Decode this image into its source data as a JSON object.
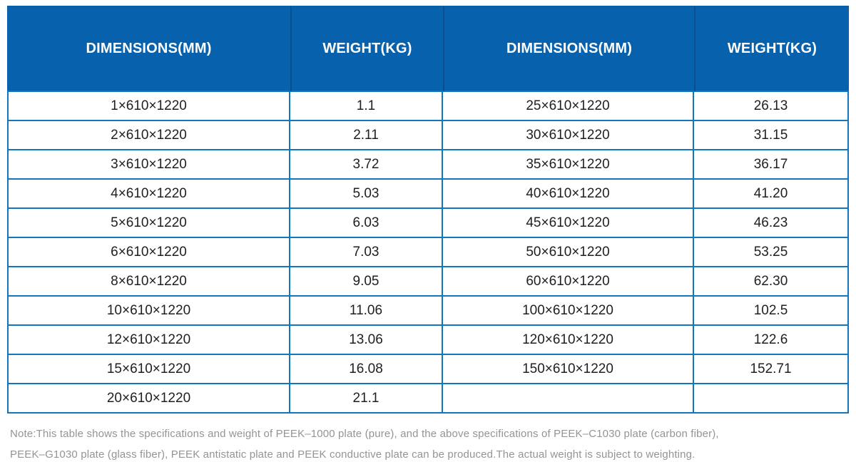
{
  "table": {
    "columns": [
      {
        "label": "DIMENSIONS(MM)"
      },
      {
        "label": "WEIGHT(KG)"
      },
      {
        "label": "DIMENSIONS(MM)"
      },
      {
        "label": "WEIGHT(KG)"
      }
    ],
    "rows": [
      [
        "1×610×1220",
        "1.1",
        "25×610×1220",
        "26.13"
      ],
      [
        "2×610×1220",
        "2.11",
        "30×610×1220",
        "31.15"
      ],
      [
        "3×610×1220",
        "3.72",
        "35×610×1220",
        "36.17"
      ],
      [
        "4×610×1220",
        "5.03",
        "40×610×1220",
        "41.20"
      ],
      [
        "5×610×1220",
        "6.03",
        "45×610×1220",
        "46.23"
      ],
      [
        "6×610×1220",
        "7.03",
        "50×610×1220",
        "53.25"
      ],
      [
        "8×610×1220",
        "9.05",
        "60×610×1220",
        "62.30"
      ],
      [
        "10×610×1220",
        "11.06",
        "100×610×1220",
        "102.5"
      ],
      [
        "12×610×1220",
        "13.06",
        "120×610×1220",
        "122.6"
      ],
      [
        "15×610×1220",
        "16.08",
        "150×610×1220",
        "152.71"
      ],
      [
        "20×610×1220",
        "21.1",
        "",
        ""
      ]
    ]
  },
  "note": {
    "line1": "Note:This table shows the specifications and weight of PEEK–1000 plate (pure), and the above specifications of PEEK–C1030 plate (carbon fiber),",
    "line2": "PEEK–G1030 plate (glass fiber), PEEK antistatic plate and PEEK conductive plate can be produced.The actual weight is subject to weighting."
  },
  "colors": {
    "header_bg": "#0761ad",
    "header_separator": "#0b4f8e",
    "grid_line": "#1176bd",
    "cell_text": "#1f1f1f",
    "note_text": "#949494"
  }
}
